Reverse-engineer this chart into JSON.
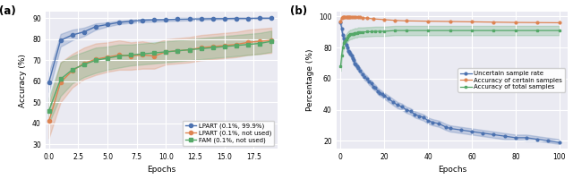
{
  "subplot_a": {
    "title": "(a)",
    "xlabel": "Epochs",
    "ylabel": "Accuracy (%)",
    "xlim": [
      -0.3,
      19.5
    ],
    "ylim": [
      28,
      93
    ],
    "yticks": [
      30,
      40,
      50,
      60,
      70,
      80,
      90
    ],
    "xtick_positions": [
      0,
      2.5,
      5.0,
      7.5,
      10.0,
      12.5,
      15.0,
      17.5
    ],
    "xtick_labels": [
      "0.0",
      "2.5",
      "5.0",
      "7.5",
      "10.0",
      "12.5",
      "15.0",
      "17.5"
    ],
    "lpart_main": {
      "label": "LPART (0.1%, 99.9%)",
      "color": "#4c72b0",
      "marker": "o",
      "mean": [
        59.5,
        79.5,
        82.0,
        83.5,
        86.0,
        87.0,
        88.0,
        88.5,
        89.0,
        89.2,
        89.3,
        89.5,
        89.6,
        89.7,
        89.8,
        89.8,
        89.9,
        89.9,
        90.0,
        90.0
      ],
      "lower": [
        55.0,
        76.5,
        79.5,
        81.5,
        84.5,
        86.0,
        87.2,
        87.8,
        88.2,
        88.4,
        88.6,
        88.8,
        89.0,
        89.2,
        89.4,
        89.5,
        89.6,
        89.7,
        89.8,
        89.9
      ],
      "upper": [
        64.0,
        82.5,
        84.5,
        85.5,
        87.5,
        88.0,
        88.8,
        89.2,
        89.8,
        90.0,
        90.0,
        90.2,
        90.2,
        90.2,
        90.2,
        90.1,
        90.2,
        90.1,
        90.2,
        90.1
      ]
    },
    "lpart_nused": {
      "label": "LPART (0.1%, not used)",
      "color": "#dd8452",
      "marker": "o",
      "mean": [
        41.0,
        59.5,
        65.0,
        68.5,
        70.5,
        71.5,
        72.5,
        72.0,
        72.5,
        72.0,
        74.0,
        74.5,
        75.0,
        76.0,
        76.5,
        77.0,
        77.5,
        78.5,
        79.0,
        79.5
      ],
      "lower": [
        33.0,
        50.0,
        57.0,
        61.0,
        63.0,
        64.5,
        65.5,
        65.5,
        66.0,
        66.0,
        68.0,
        68.5,
        69.0,
        70.0,
        70.5,
        71.0,
        71.5,
        72.5,
        73.0,
        73.5
      ],
      "upper": [
        49.0,
        69.0,
        73.0,
        76.0,
        78.0,
        78.5,
        79.5,
        78.5,
        79.0,
        78.0,
        80.0,
        80.5,
        81.0,
        82.0,
        82.5,
        83.0,
        83.5,
        84.5,
        85.0,
        85.5
      ]
    },
    "fam_nused": {
      "label": "FAM (0.1%, not used)",
      "color": "#55a868",
      "marker": "s",
      "mean": [
        46.0,
        61.0,
        65.5,
        68.0,
        70.0,
        71.0,
        72.0,
        72.5,
        73.0,
        73.5,
        74.0,
        74.5,
        75.0,
        75.5,
        76.0,
        76.5,
        77.0,
        77.5,
        78.0,
        79.0
      ],
      "lower": [
        40.0,
        53.0,
        59.0,
        62.0,
        64.0,
        65.5,
        66.5,
        67.5,
        68.0,
        68.5,
        69.0,
        69.5,
        70.0,
        70.5,
        71.0,
        71.5,
        72.0,
        72.5,
        73.0,
        74.0
      ],
      "upper": [
        52.0,
        69.0,
        72.0,
        74.0,
        76.0,
        76.5,
        77.5,
        77.5,
        78.0,
        78.5,
        79.0,
        79.5,
        80.0,
        80.5,
        81.0,
        81.5,
        82.0,
        82.5,
        83.0,
        84.0
      ]
    }
  },
  "subplot_b": {
    "title": "(b)",
    "xlabel": "Epochs",
    "ylabel": "Percentage (%)",
    "xlim": [
      -2,
      104
    ],
    "ylim": [
      15,
      103
    ],
    "yticks": [
      20,
      40,
      60,
      80,
      100
    ],
    "xticks": [
      0,
      20,
      40,
      60,
      80,
      100
    ],
    "uncertain": {
      "label": "Uncertain sample rate",
      "color": "#4c72b0",
      "x": [
        0,
        0.5,
        1,
        1.5,
        2,
        2.5,
        3,
        3.5,
        4,
        4.5,
        5,
        5.5,
        6,
        6.5,
        7,
        7.5,
        8,
        9,
        10,
        11,
        12,
        13,
        14,
        15,
        16,
        17,
        18,
        19,
        20,
        22,
        24,
        26,
        28,
        30,
        32,
        34,
        36,
        38,
        40,
        42,
        45,
        48,
        50,
        55,
        60,
        65,
        70,
        75,
        80,
        85,
        90,
        95,
        100
      ],
      "mean": [
        96,
        92,
        88,
        86,
        84,
        82,
        80,
        78,
        77,
        76,
        75,
        73,
        72,
        70,
        69,
        68,
        67,
        65,
        63,
        61,
        60,
        58,
        57,
        55,
        54,
        52,
        51,
        50,
        49,
        47,
        45,
        43,
        42,
        40,
        39,
        37,
        36,
        35,
        33,
        32,
        31,
        29,
        28,
        27,
        26,
        25,
        24,
        23,
        22,
        22,
        21,
        20,
        19
      ],
      "lower": [
        94,
        90,
        86,
        84,
        82,
        80,
        78,
        76,
        75,
        74,
        73,
        71,
        70,
        68,
        67,
        66,
        65,
        63,
        61,
        59,
        58,
        56,
        55,
        53,
        52,
        50,
        49,
        48,
        47,
        45,
        43,
        41,
        40,
        38,
        37,
        35,
        34,
        33,
        31,
        30,
        29,
        27,
        26,
        25,
        24,
        23,
        22,
        21,
        21,
        20,
        20,
        19,
        18
      ],
      "upper": [
        98,
        94,
        90,
        88,
        86,
        84,
        82,
        80,
        79,
        78,
        77,
        75,
        74,
        72,
        71,
        70,
        69,
        67,
        65,
        63,
        62,
        60,
        59,
        57,
        56,
        54,
        53,
        52,
        51,
        49,
        47,
        45,
        44,
        42,
        41,
        39,
        38,
        37,
        35,
        34,
        33,
        31,
        30,
        29,
        28,
        27,
        26,
        25,
        24,
        24,
        23,
        22,
        21
      ]
    },
    "certain_acc": {
      "label": "Accuracy of certain samples",
      "color": "#dd8452",
      "x": [
        0,
        0.5,
        1,
        1.5,
        2,
        2.5,
        3,
        3.5,
        4,
        4.5,
        5,
        6,
        7,
        8,
        9,
        10,
        12,
        15,
        20,
        25,
        30,
        40,
        50,
        60,
        70,
        80,
        90,
        100
      ],
      "mean": [
        97,
        99,
        99.5,
        99.5,
        99.5,
        99.5,
        99.5,
        99.5,
        99.5,
        99.5,
        99.5,
        99.5,
        99.5,
        99.5,
        99.5,
        99.2,
        99.0,
        98.5,
        98.0,
        97.5,
        97.2,
        97.0,
        96.8,
        96.6,
        96.4,
        96.2,
        96.1,
        96.0
      ]
    },
    "total_acc": {
      "label": "Accuracy of total samples",
      "color": "#55a868",
      "x": [
        0,
        0.5,
        1,
        1.5,
        2,
        2.5,
        3,
        3.5,
        4,
        4.5,
        5,
        5.5,
        6,
        6.5,
        7,
        7.5,
        8,
        9,
        10,
        12,
        14,
        16,
        18,
        20,
        25,
        30,
        40,
        50,
        60,
        70,
        80,
        90,
        100
      ],
      "mean": [
        68,
        75,
        80,
        83,
        84,
        85.5,
        86.5,
        87.5,
        88,
        88.5,
        88.5,
        89,
        89,
        89.5,
        89.5,
        89.5,
        90,
        90,
        90,
        90.2,
        90.3,
        90.5,
        90.5,
        90.5,
        91,
        91,
        91,
        91,
        91,
        91,
        91,
        91,
        91
      ],
      "lower": [
        65,
        72,
        77,
        80,
        81,
        82.5,
        83.5,
        84.5,
        85,
        85.5,
        85.5,
        86,
        86,
        86.5,
        86.5,
        86.5,
        87,
        87,
        87,
        87.2,
        87.3,
        87.5,
        87.5,
        87.5,
        88,
        88,
        88,
        88,
        88,
        88,
        88,
        88,
        88
      ],
      "upper": [
        71,
        78,
        83,
        86,
        87,
        88.5,
        89.5,
        90.5,
        91,
        91.5,
        91.5,
        92,
        92,
        92.5,
        92.5,
        92.5,
        93,
        93,
        93,
        93.2,
        93.3,
        93.5,
        93.5,
        93.5,
        94,
        94,
        94,
        94,
        94,
        94,
        94,
        94,
        94
      ]
    }
  },
  "bg_color": "#eaeaf2",
  "grid_color": "white",
  "fig_bg": "#ffffff"
}
